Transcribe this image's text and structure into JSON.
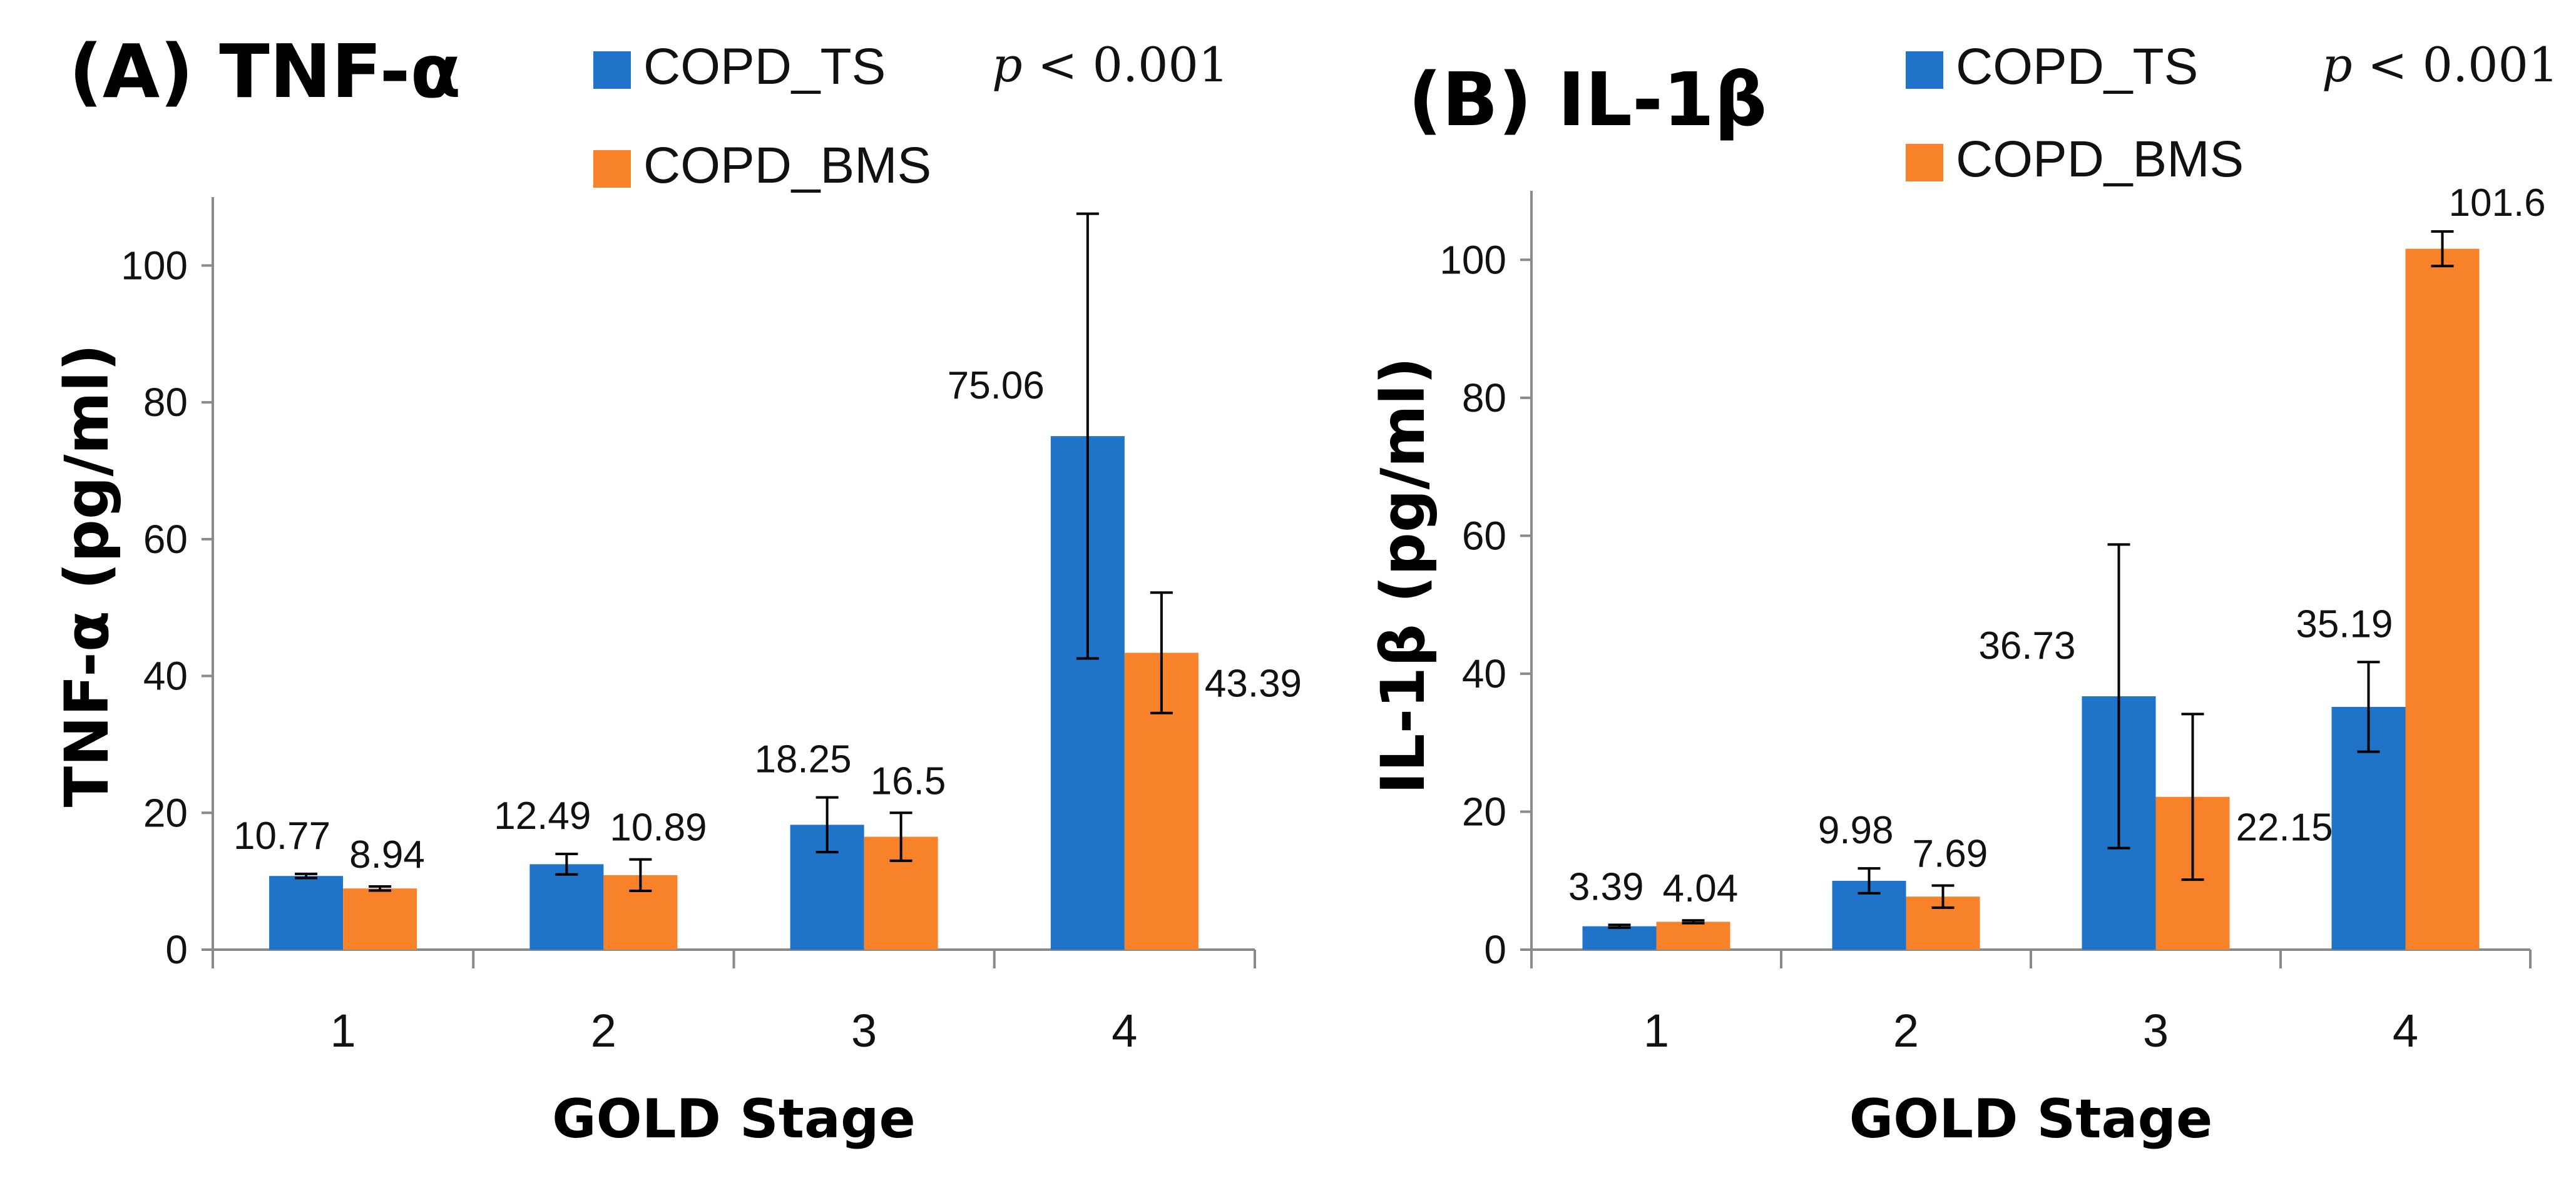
{
  "chart_data": [
    {
      "type": "bar",
      "panel_title": "(A) TNF-α",
      "xlabel": "GOLD Stage",
      "ylabel": "TNF-α (pg/ml)",
      "annotation": "p < 0.001",
      "categories": [
        "1",
        "2",
        "3",
        "4"
      ],
      "ylim": [
        0,
        110
      ],
      "yticks": [
        0,
        20,
        40,
        60,
        80,
        100
      ],
      "legend_position": "top",
      "series": [
        {
          "name": "COPD_TS",
          "color": "#1f74c9",
          "values": [
            10.77,
            12.49,
            18.25,
            75.06
          ],
          "labels": [
            "10.77",
            "12.49",
            "18.25",
            "75.06"
          ],
          "error": [
            0.3,
            1.5,
            4.0,
            32.5
          ]
        },
        {
          "name": "COPD_BMS",
          "color": "#f7822a",
          "values": [
            8.94,
            10.89,
            16.5,
            43.39
          ],
          "labels": [
            "8.94",
            "10.89",
            "16.5",
            "43.39"
          ],
          "error": [
            0.3,
            2.3,
            3.5,
            8.8
          ]
        }
      ]
    },
    {
      "type": "bar",
      "panel_title": "(B) IL-1β",
      "xlabel": "GOLD Stage",
      "ylabel": "IL-1β (pg/ml)",
      "annotation": "p < 0.001",
      "categories": [
        "1",
        "2",
        "3",
        "4"
      ],
      "ylim": [
        0,
        110
      ],
      "yticks": [
        0,
        20,
        40,
        60,
        80,
        100
      ],
      "legend_position": "top",
      "series": [
        {
          "name": "COPD_TS",
          "color": "#1f74c9",
          "values": [
            3.39,
            9.98,
            36.73,
            35.19
          ],
          "labels": [
            "3.39",
            "9.98",
            "36.73",
            "35.19"
          ],
          "error": [
            0.2,
            1.8,
            22.0,
            6.5
          ]
        },
        {
          "name": "COPD_BMS",
          "color": "#f7822a",
          "values": [
            4.04,
            7.69,
            22.15,
            101.6
          ],
          "labels": [
            "4.04",
            "7.69",
            "22.15",
            "101.6"
          ],
          "error": [
            0.2,
            1.6,
            12.0,
            2.5
          ]
        }
      ]
    }
  ]
}
